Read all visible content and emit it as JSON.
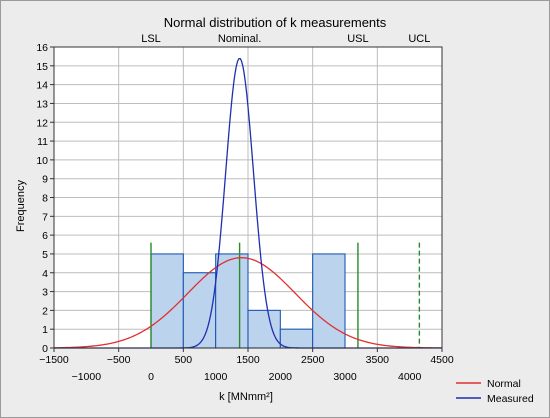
{
  "chart_data": {
    "type": "bar",
    "title": "Normal distribution of k measurements",
    "xlabel": "k [MNmm²]",
    "ylabel": "Frequency",
    "xlim": [
      -1500,
      4500
    ],
    "ylim": [
      0,
      16
    ],
    "x_ticks_top_row": [
      -1500,
      -500,
      500,
      1500,
      2500,
      3500,
      4500
    ],
    "x_ticks_bottom_row": [
      -1000,
      0,
      1000,
      2000,
      3000,
      4000
    ],
    "y_ticks": [
      0,
      1,
      2,
      3,
      4,
      5,
      6,
      7,
      8,
      9,
      10,
      11,
      12,
      13,
      14,
      15,
      16
    ],
    "grid": true,
    "bins": [
      {
        "from": 0,
        "to": 500,
        "value": 5
      },
      {
        "from": 500,
        "to": 1000,
        "value": 4
      },
      {
        "from": 1000,
        "to": 1500,
        "value": 5
      },
      {
        "from": 1500,
        "to": 2000,
        "value": 2
      },
      {
        "from": 2000,
        "to": 2500,
        "value": 1
      },
      {
        "from": 2500,
        "to": 3000,
        "value": 5
      }
    ],
    "series": [
      {
        "name": "Normal",
        "kind": "normal-curve",
        "mean": 1400,
        "sd": 830,
        "peak": 4.8,
        "color": "#e03030"
      },
      {
        "name": "Measured",
        "kind": "normal-curve",
        "mean": 1370,
        "sd": 215,
        "peak": 15.4,
        "color": "#1f2fb0"
      }
    ],
    "reference_lines": [
      {
        "label": "LSL",
        "x": 0,
        "style": "solid",
        "color": "#2a8a2a"
      },
      {
        "label": "Nominal.",
        "x": 1370,
        "style": "solid",
        "color": "#2a8a2a"
      },
      {
        "label": "USL",
        "x": 3200,
        "style": "solid",
        "color": "#2a8a2a"
      },
      {
        "label": "UCL",
        "x": 4150,
        "style": "dashed",
        "color": "#2a8a2a"
      }
    ],
    "legend": {
      "placement": "bottom-right"
    },
    "colors": {
      "bar_fill": "#bcd3ee",
      "bar_stroke": "#1e58b4",
      "grid": "#bdbdbd",
      "plot_bg": "#ffffff"
    }
  }
}
